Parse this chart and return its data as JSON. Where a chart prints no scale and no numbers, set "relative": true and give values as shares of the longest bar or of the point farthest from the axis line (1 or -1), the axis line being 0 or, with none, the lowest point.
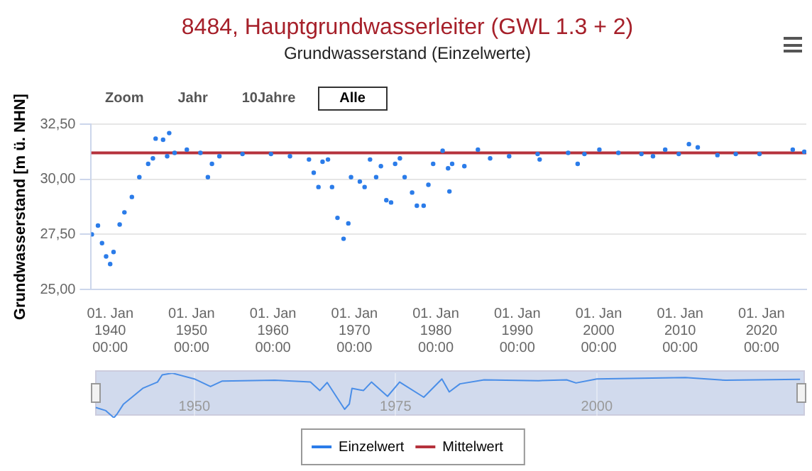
{
  "chart_data": [
    {
      "type": "scatter",
      "title": "8484, Hauptgrundwasserleiter (GWL 1.3 + 2)",
      "subtitle": "Grundwasserstand (Einzelwerte)",
      "ylabel": "Grundwasserstand [m ü. NHN]",
      "annotations": [
        "Zoom",
        "Jahr",
        "10Jahre",
        "Alle"
      ],
      "xlim": [
        "1937-09",
        "2025-07"
      ],
      "xticks": [
        {
          "value": "1940-01-01",
          "label": "01. Jan\n1940\n00:00"
        },
        {
          "value": "1950-01-01",
          "label": "01. Jan\n1950\n00:00"
        },
        {
          "value": "1960-01-01",
          "label": "01. Jan\n1960\n00:00"
        },
        {
          "value": "1970-01-01",
          "label": "01. Jan\n1970\n00:00"
        },
        {
          "value": "1980-01-01",
          "label": "01. Jan\n1980\n00:00"
        },
        {
          "value": "1990-01-01",
          "label": "01. Jan\n1990\n00:00"
        },
        {
          "value": "2000-01-01",
          "label": "01. Jan\n2000\n00:00"
        },
        {
          "value": "2010-01-01",
          "label": "01. Jan\n2010\n00:00"
        },
        {
          "value": "2020-01-01",
          "label": "01. Jan\n2020\n00:00"
        }
      ],
      "ylim": [
        25,
        32.5
      ],
      "yticks": [
        {
          "value": 25,
          "label": "25,00"
        },
        {
          "value": 27.5,
          "label": "27,50"
        },
        {
          "value": 30,
          "label": "30,00"
        },
        {
          "value": 32.5,
          "label": "32,50"
        }
      ],
      "grid": "y",
      "legend": "bottom",
      "series": [
        {
          "name": "Einzelwert",
          "type": "scatter",
          "marker": "circle",
          "color": "#2b7ce9",
          "x": [
            "1937-10",
            "1938-07",
            "1939-01",
            "1939-07",
            "1940-01",
            "1940-06",
            "1941-03",
            "1941-10",
            "1942-09",
            "1943-08",
            "1944-09",
            "1945-04",
            "1945-08",
            "1946-07",
            "1947-01",
            "1947-04",
            "1947-12",
            "1949-06",
            "1951-02",
            "1952-01",
            "1952-07",
            "1953-06",
            "1956-04",
            "1959-10",
            "1962-02",
            "1964-06",
            "1965-01",
            "1965-08",
            "1966-02",
            "1966-10",
            "1967-04",
            "1967-12",
            "1968-09",
            "1969-04",
            "1969-08",
            "1970-09",
            "1971-04",
            "1971-12",
            "1972-09",
            "1973-04",
            "1973-12",
            "1974-07",
            "1975-01",
            "1975-08",
            "1976-03",
            "1977-02",
            "1977-09",
            "1978-07",
            "1979-02",
            "1979-09",
            "1980-11",
            "1981-07",
            "1981-09",
            "1982-01",
            "1983-07",
            "1985-03",
            "1986-09",
            "1989-01",
            "1992-07",
            "1992-10",
            "1996-04",
            "1997-06",
            "1998-04",
            "2000-02",
            "2002-06",
            "2005-04",
            "2006-09",
            "2008-03",
            "2009-11",
            "2011-02",
            "2012-03",
            "2014-08",
            "2016-11",
            "2019-10",
            "2023-11",
            "2025-04"
          ],
          "values": [
            27.5,
            27.9,
            27.1,
            26.5,
            26.15,
            26.7,
            27.95,
            28.5,
            29.2,
            30.1,
            30.7,
            30.95,
            31.85,
            31.8,
            31.05,
            32.1,
            31.2,
            31.35,
            31.2,
            30.1,
            30.7,
            31.05,
            31.15,
            31.15,
            31.05,
            30.9,
            30.3,
            29.65,
            30.8,
            30.9,
            29.65,
            28.25,
            27.3,
            28,
            30.1,
            29.9,
            29.65,
            30.9,
            30.1,
            30.6,
            29.05,
            28.95,
            30.7,
            30.95,
            30.1,
            29.4,
            28.8,
            28.8,
            29.75,
            30.7,
            31.3,
            30.5,
            29.45,
            30.7,
            30.6,
            31.35,
            30.95,
            31.05,
            31.15,
            30.9,
            31.2,
            30.7,
            31.15,
            31.35,
            31.2,
            31.15,
            31.05,
            31.35,
            31.15,
            31.6,
            31.45,
            31.1,
            31.15,
            31.15,
            31.35,
            31.25
          ]
        },
        {
          "name": "Mittelwert",
          "type": "line",
          "color": "#b5323c",
          "x": [
            "1937-09",
            "2025-07"
          ],
          "values": [
            31.2,
            31.2
          ]
        }
      ]
    },
    {
      "type": "line",
      "relative": true,
      "tick_labels": "x",
      "grid": "x",
      "xlim": [
        "1937-09",
        "2025-07"
      ],
      "xticks": [
        {
          "value": "1950-01-01",
          "label": "1950"
        },
        {
          "value": "1975-01-01",
          "label": "1975"
        },
        {
          "value": "2000-01-01",
          "label": "2000"
        }
      ],
      "series": [
        {
          "color": "#4a8ee8",
          "x": [
            "1937-10",
            "1939-01",
            "1940-01",
            "1940-06",
            "1941-03",
            "1943-08",
            "1945-06",
            "1946-01",
            "1947-04",
            "1950-01",
            "1952-01",
            "1953-06",
            "1960-01",
            "1964-06",
            "1965-08",
            "1966-07",
            "1968-09",
            "1969-04",
            "1969-08",
            "1971-01",
            "1972-01",
            "1974-01",
            "1975-07",
            "1978-07",
            "1980-10",
            "1981-09",
            "1983-01",
            "1986-01",
            "1992-10",
            "1996-04",
            "1997-06",
            "2000-01",
            "2011-01",
            "2016-01",
            "2025-04"
          ],
          "values": [
            0.23,
            0.16,
            0,
            0.09,
            0.3,
            0.66,
            0.8,
            0.96,
            1,
            0.87,
            0.7,
            0.82,
            0.84,
            0.8,
            0.61,
            0.79,
            0.19,
            0.31,
            0.66,
            0.61,
            0.8,
            0.48,
            0.8,
            0.46,
            0.87,
            0.58,
            0.76,
            0.85,
            0.83,
            0.85,
            0.78,
            0.87,
            0.9,
            0.84,
            0.86
          ]
        }
      ]
    }
  ]
}
